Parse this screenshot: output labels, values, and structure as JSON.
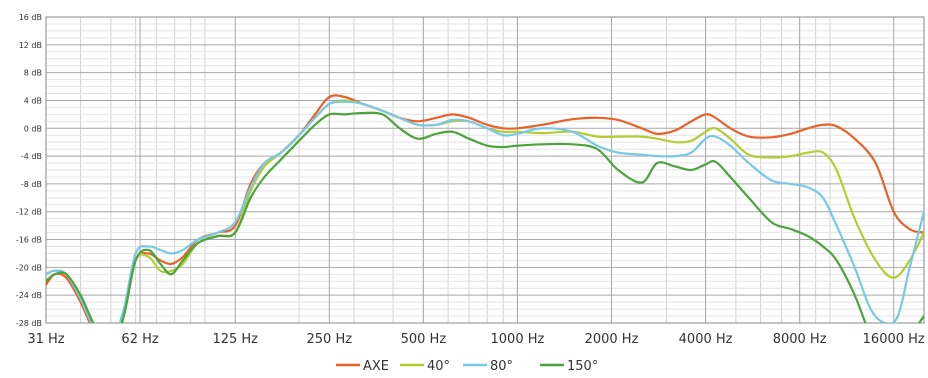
{
  "chart_data": {
    "type": "line",
    "xscale": "log",
    "xlim": [
      31,
      20000
    ],
    "ylim": [
      -28,
      16
    ],
    "ystep": 4,
    "grid": true,
    "legend_position": "bottom-center",
    "x_ticks": [
      31,
      62,
      125,
      250,
      500,
      1000,
      2000,
      4000,
      8000,
      16000
    ],
    "x_tick_labels": [
      "31 Hz",
      "62 Hz",
      "125 Hz",
      "250 Hz",
      "500 Hz",
      "1000 Hz",
      "2000 Hz",
      "4000 Hz",
      "8000 Hz",
      "16000 Hz"
    ],
    "y_ticks": [
      16,
      12,
      8,
      4,
      0,
      -4,
      -8,
      -12,
      -16,
      -20,
      -24,
      -28
    ],
    "y_tick_labels": [
      "16 dB",
      "12 dB",
      "8 dB",
      "4 dB",
      "0 dB",
      "-4 dB",
      "-8 dB",
      "-12 dB",
      "-16 dB",
      "-20 dB",
      "-24 dB",
      "-28 dB"
    ],
    "series": [
      {
        "name": "AXE",
        "color": "#e8622a",
        "x": [
          31,
          33,
          36,
          40,
          45,
          50,
          55,
          60,
          66,
          72,
          78,
          85,
          95,
          110,
          125,
          140,
          155,
          175,
          200,
          225,
          250,
          280,
          320,
          370,
          420,
          480,
          550,
          620,
          700,
          800,
          900,
          1000,
          1200,
          1500,
          1800,
          2100,
          2500,
          2800,
          3200,
          3600,
          4000,
          4300,
          4800,
          5500,
          6500,
          7500,
          8500,
          9500,
          10500,
          12000,
          14000,
          16000,
          18000,
          20000
        ],
        "y": [
          -22.5,
          -21,
          -21.5,
          -25,
          -30,
          -32,
          -27,
          -19,
          -18,
          -19,
          -19.5,
          -18.5,
          -16,
          -15,
          -14,
          -8,
          -5,
          -3.5,
          -1,
          2,
          4.5,
          4.5,
          3.5,
          2.5,
          1.5,
          1,
          1.5,
          2,
          1.5,
          0.5,
          0,
          0,
          0.5,
          1.3,
          1.5,
          1.2,
          0,
          -0.8,
          -0.3,
          1,
          2,
          1.5,
          0,
          -1.2,
          -1.3,
          -0.8,
          0,
          0.5,
          0.3,
          -1.5,
          -5,
          -12,
          -14.5,
          -15
        ]
      },
      {
        "name": "40°",
        "color": "#b5cc33",
        "x": [
          31,
          33,
          36,
          40,
          45,
          50,
          55,
          60,
          66,
          72,
          78,
          85,
          95,
          110,
          125,
          140,
          155,
          175,
          200,
          225,
          250,
          280,
          320,
          370,
          420,
          480,
          550,
          620,
          700,
          800,
          900,
          1000,
          1200,
          1500,
          1800,
          2100,
          2500,
          2800,
          3200,
          3600,
          4000,
          4300,
          4800,
          5500,
          6500,
          7500,
          8500,
          9500,
          10500,
          12000,
          14000,
          16000,
          18000,
          20000
        ],
        "y": [
          -21,
          -20.5,
          -21,
          -24.5,
          -29.5,
          -32,
          -27,
          -19,
          -18.5,
          -20.5,
          -20.5,
          -19.5,
          -16.5,
          -15.5,
          -15,
          -9,
          -5.5,
          -3.5,
          -1,
          1.5,
          3.5,
          4,
          3.5,
          2.5,
          1.5,
          0.5,
          0.5,
          1,
          1,
          0,
          -0.5,
          -0.5,
          -0.7,
          -0.5,
          -1.2,
          -1.2,
          -1.2,
          -1.5,
          -2,
          -1.8,
          -0.5,
          0,
          -1.5,
          -3.8,
          -4.2,
          -4,
          -3.5,
          -3.5,
          -6,
          -13,
          -19,
          -21.5,
          -19,
          -15
        ]
      },
      {
        "name": "80°",
        "color": "#78c8e8",
        "x": [
          31,
          33,
          36,
          40,
          45,
          50,
          55,
          60,
          66,
          72,
          78,
          85,
          95,
          110,
          125,
          140,
          155,
          175,
          200,
          225,
          250,
          280,
          320,
          370,
          420,
          480,
          550,
          620,
          700,
          800,
          900,
          1000,
          1200,
          1500,
          1800,
          2100,
          2500,
          2800,
          3200,
          3600,
          4000,
          4300,
          4800,
          5500,
          6500,
          7500,
          8500,
          9500,
          10500,
          12000,
          13500,
          15000,
          16500,
          18000,
          20000
        ],
        "y": [
          -21,
          -20.5,
          -21,
          -24.5,
          -29.5,
          -31,
          -26,
          -18,
          -17,
          -17.5,
          -18,
          -17.5,
          -16,
          -15,
          -13.5,
          -8.5,
          -5,
          -3.5,
          -1,
          1.5,
          3.5,
          3.8,
          3.5,
          2.5,
          1.5,
          0.5,
          0.5,
          1.2,
          1,
          0,
          -1,
          -0.8,
          0,
          -0.5,
          -2.5,
          -3.5,
          -3.8,
          -4,
          -4,
          -3.5,
          -1.5,
          -1.2,
          -2.5,
          -5,
          -7.5,
          -8,
          -8.5,
          -10,
          -14,
          -20,
          -26,
          -28,
          -27,
          -20,
          -12
        ]
      },
      {
        "name": "150°",
        "color": "#4ca43c",
        "x": [
          31,
          33,
          36,
          40,
          45,
          50,
          55,
          60,
          66,
          72,
          78,
          85,
          95,
          110,
          125,
          140,
          155,
          175,
          200,
          225,
          250,
          280,
          320,
          370,
          420,
          480,
          550,
          620,
          700,
          800,
          900,
          1000,
          1200,
          1500,
          1800,
          2100,
          2500,
          2800,
          3200,
          3600,
          4000,
          4300,
          4800,
          5500,
          6500,
          7500,
          8500,
          9500,
          10500,
          12000,
          13500,
          15000,
          16500,
          18000,
          20000
        ],
        "y": [
          -22,
          -21,
          -21,
          -24,
          -29,
          -32,
          -27,
          -19,
          -17.5,
          -19.5,
          -21,
          -19,
          -16.5,
          -15.5,
          -15,
          -10,
          -7,
          -4.5,
          -1.8,
          0.5,
          2,
          2,
          2.2,
          2,
          0,
          -1.5,
          -0.8,
          -0.5,
          -1.5,
          -2.5,
          -2.7,
          -2.5,
          -2.3,
          -2.3,
          -3,
          -6,
          -7.8,
          -5,
          -5.5,
          -6,
          -5.2,
          -4.8,
          -7,
          -10,
          -13.5,
          -14.5,
          -15.5,
          -17,
          -19,
          -24,
          -30,
          -34,
          -33,
          -30,
          -27
        ]
      }
    ]
  }
}
